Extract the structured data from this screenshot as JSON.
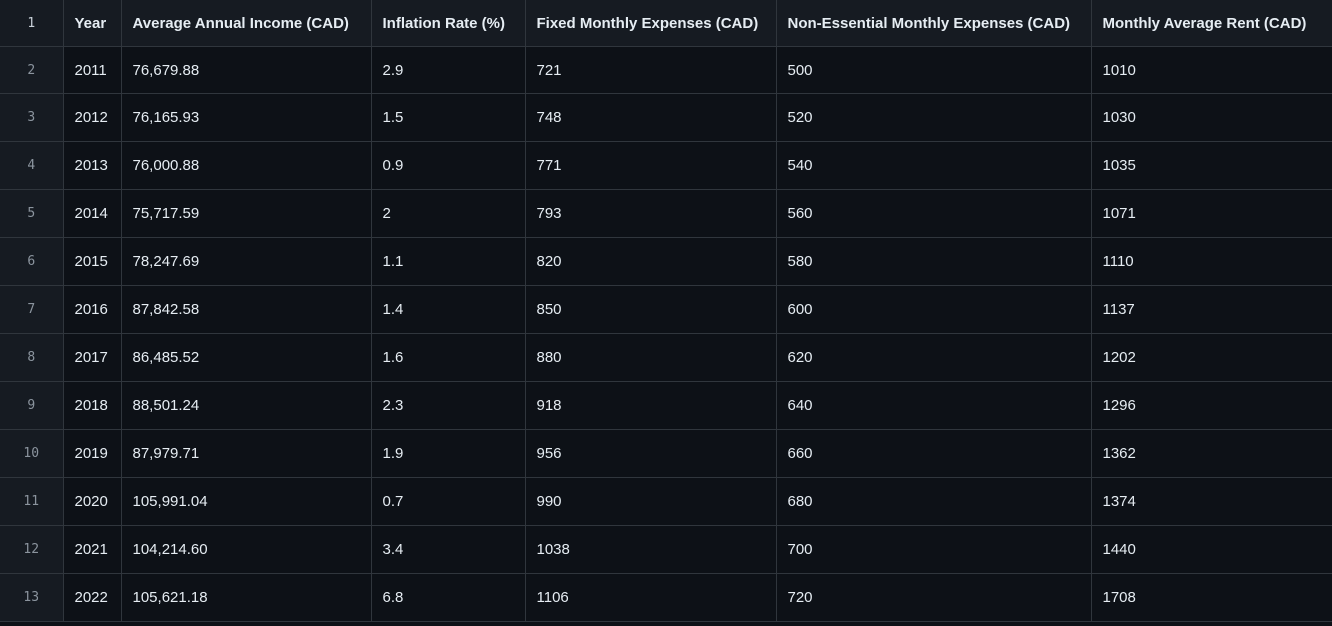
{
  "table": {
    "header_line": "1",
    "headers": [
      "Year",
      "Average Annual Income (CAD)",
      "Inflation Rate (%)",
      "Fixed Monthly Expenses (CAD)",
      "Non-Essential Monthly Expenses (CAD)",
      "Monthly Average Rent (CAD)"
    ],
    "rows": [
      {
        "line": "2",
        "cells": [
          "2011",
          "76,679.88",
          "2.9",
          "721",
          "500",
          "1010"
        ]
      },
      {
        "line": "3",
        "cells": [
          "2012",
          "76,165.93",
          "1.5",
          "748",
          "520",
          "1030"
        ]
      },
      {
        "line": "4",
        "cells": [
          "2013",
          "76,000.88",
          "0.9",
          "771",
          "540",
          "1035"
        ]
      },
      {
        "line": "5",
        "cells": [
          "2014",
          "75,717.59",
          "2",
          "793",
          "560",
          "1071"
        ]
      },
      {
        "line": "6",
        "cells": [
          "2015",
          "78,247.69",
          "1.1",
          "820",
          "580",
          "1110"
        ]
      },
      {
        "line": "7",
        "cells": [
          "2016",
          "87,842.58",
          "1.4",
          "850",
          "600",
          "1137"
        ]
      },
      {
        "line": "8",
        "cells": [
          "2017",
          "86,485.52",
          "1.6",
          "880",
          "620",
          "1202"
        ]
      },
      {
        "line": "9",
        "cells": [
          "2018",
          "88,501.24",
          "2.3",
          "918",
          "640",
          "1296"
        ]
      },
      {
        "line": "10",
        "cells": [
          "2019",
          "87,979.71",
          "1.9",
          "956",
          "660",
          "1362"
        ]
      },
      {
        "line": "11",
        "cells": [
          "2020",
          "105,991.04",
          "0.7",
          "990",
          "680",
          "1374"
        ]
      },
      {
        "line": "12",
        "cells": [
          "2021",
          "104,214.60",
          "3.4",
          "1038",
          "700",
          "1440"
        ]
      },
      {
        "line": "13",
        "cells": [
          "2022",
          "105,621.18",
          "6.8",
          "1106",
          "720",
          "1708"
        ]
      }
    ]
  },
  "colors": {
    "background": "#0d1117",
    "header_background": "#161b22",
    "border": "#30363d",
    "text": "#e6edf3",
    "line_number_text": "#8b949e"
  }
}
